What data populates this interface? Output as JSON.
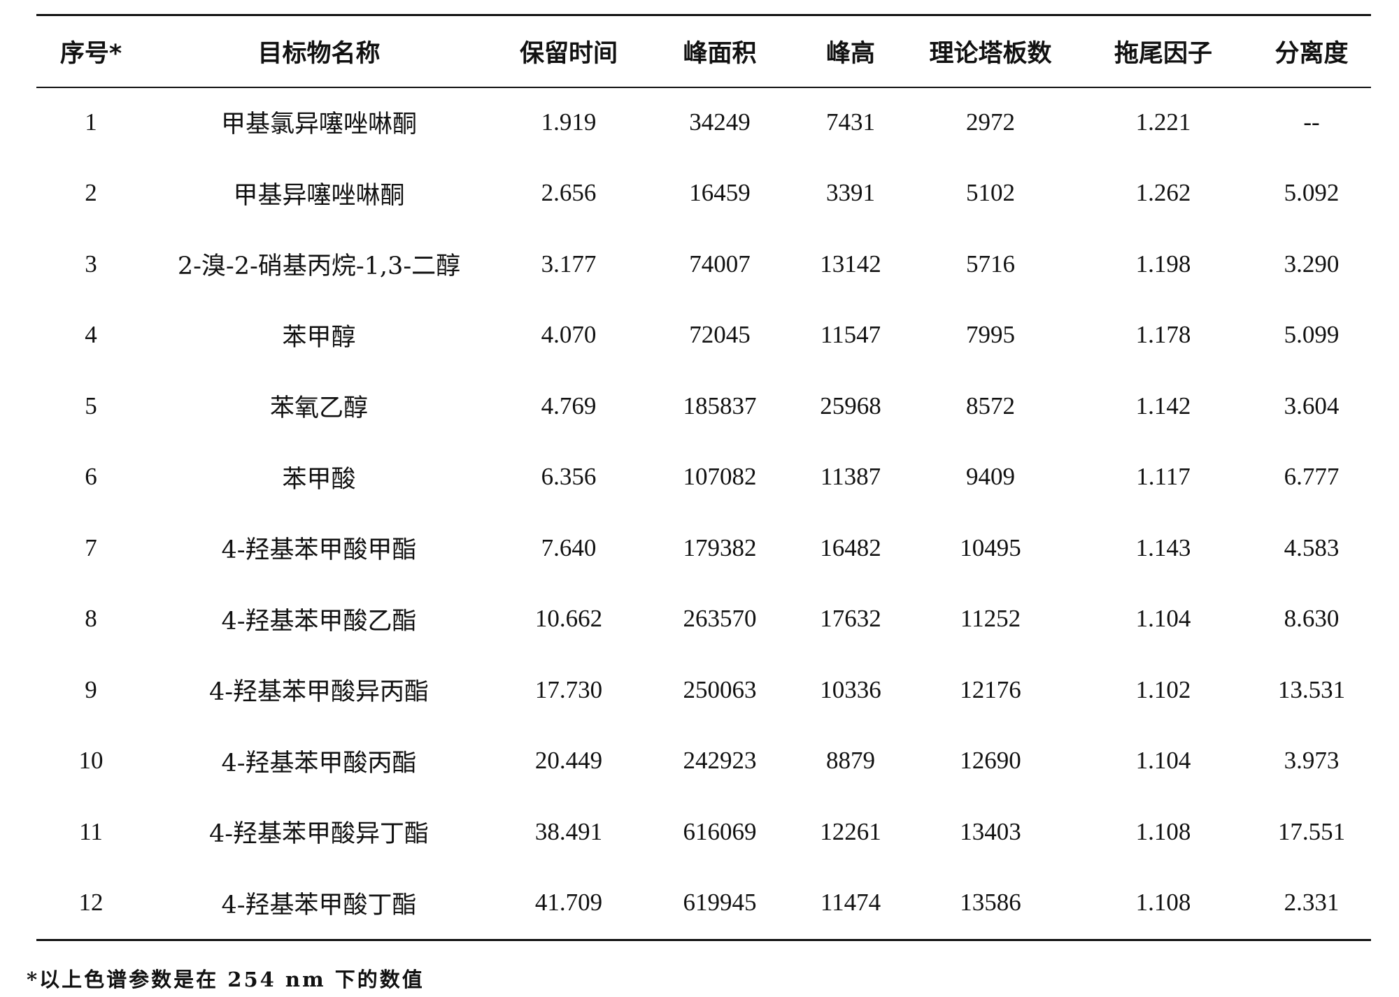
{
  "table": {
    "headers": [
      "序号*",
      "目标物名称",
      "保留时间",
      "峰面积",
      "峰高",
      "理论塔板数",
      "拖尾因子",
      "分离度"
    ],
    "rows": [
      [
        "1",
        "甲基氯异噻唑啉酮",
        "1.919",
        "34249",
        "7431",
        "2972",
        "1.221",
        "--"
      ],
      [
        "2",
        "甲基异噻唑啉酮",
        "2.656",
        "16459",
        "3391",
        "5102",
        "1.262",
        "5.092"
      ],
      [
        "3",
        "2-溴-2-硝基丙烷-1,3-二醇",
        "3.177",
        "74007",
        "13142",
        "5716",
        "1.198",
        "3.290"
      ],
      [
        "4",
        "苯甲醇",
        "4.070",
        "72045",
        "11547",
        "7995",
        "1.178",
        "5.099"
      ],
      [
        "5",
        "苯氧乙醇",
        "4.769",
        "185837",
        "25968",
        "8572",
        "1.142",
        "3.604"
      ],
      [
        "6",
        "苯甲酸",
        "6.356",
        "107082",
        "11387",
        "9409",
        "1.117",
        "6.777"
      ],
      [
        "7",
        "4-羟基苯甲酸甲酯",
        "7.640",
        "179382",
        "16482",
        "10495",
        "1.143",
        "4.583"
      ],
      [
        "8",
        "4-羟基苯甲酸乙酯",
        "10.662",
        "263570",
        "17632",
        "11252",
        "1.104",
        "8.630"
      ],
      [
        "9",
        "4-羟基苯甲酸异丙酯",
        "17.730",
        "250063",
        "10336",
        "12176",
        "1.102",
        "13.531"
      ],
      [
        "10",
        "4-羟基苯甲酸丙酯",
        "20.449",
        "242923",
        "8879",
        "12690",
        "1.104",
        "3.973"
      ],
      [
        "11",
        "4-羟基苯甲酸异丁酯",
        "38.491",
        "616069",
        "12261",
        "13403",
        "1.108",
        "17.551"
      ],
      [
        "12",
        "4-羟基苯甲酸丁酯",
        "41.709",
        "619945",
        "11474",
        "13586",
        "1.108",
        "2.331"
      ]
    ]
  },
  "footnote": "*以上色谱参数是在 254 nm 下的数值"
}
